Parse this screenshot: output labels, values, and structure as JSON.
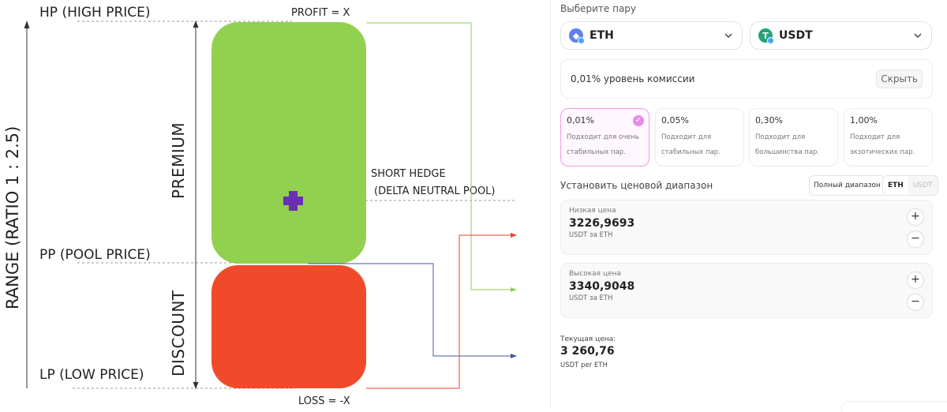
{
  "diagram": {
    "hp_label": "HP (HIGH PRICE)",
    "pp_label": "PP (POOL PRICE)",
    "lp_label": "LP (LOW PRICE)",
    "profit_label": "PROFIT = X",
    "loss_label": "LOSS = -X",
    "short_hedge_label": "SHORT HEDGE",
    "delta_neutral_label": "(DELTA NEUTRAL POOL)",
    "premium_label": "PREMIUM",
    "discount_label": "DISCOUNT",
    "range_label": "RANGE (RATIO 1 : 2.5)",
    "colors": {
      "premium_box": "#92d050",
      "discount_box": "#f04a2a",
      "hedge_cross": "#6a2fb5",
      "profit_line": "#8ccf5a",
      "loss_line": "#e8432a",
      "blue_line": "#4656a8"
    }
  },
  "panel": {
    "title": "Выберите пару",
    "token_a": {
      "symbol": "ETH",
      "icon": "eth-icon",
      "color": "#627eea"
    },
    "token_b": {
      "symbol": "USDT",
      "icon": "usdt-icon",
      "color": "#26a17b"
    },
    "fee_text": "0,01% уровень комиссии",
    "hide_label": "Скрыть",
    "fee_tiers": [
      {
        "pct": "0,01%",
        "line1": "Подходит для очень",
        "line2": "стабильных пар.",
        "selected": true
      },
      {
        "pct": "0,05%",
        "line1": "Подходит для",
        "line2": "стабильных пар.",
        "selected": false
      },
      {
        "pct": "0,30%",
        "line1": "Подходит для",
        "line2": "большинства пар.",
        "selected": false
      },
      {
        "pct": "1,00%",
        "line1": "Подходит для",
        "line2": "экзотических пар.",
        "selected": false
      }
    ],
    "range_title": "Установить ценовой диапазон",
    "full_range_label": "Полный диапазон",
    "toggle": {
      "left": "ETH",
      "right": "USDT"
    },
    "low_price": {
      "label": "Низкая цена",
      "value": "3226,9693",
      "unit": "USDT за ETH"
    },
    "high_price": {
      "label": "Высокая цена",
      "value": "3340,9048",
      "unit": "USDT за ETH"
    },
    "plus_symbol": "+",
    "minus_symbol": "−",
    "current": {
      "label": "Текущая цена:",
      "value": "3 260,76",
      "unit": "USDT per ETH"
    }
  }
}
